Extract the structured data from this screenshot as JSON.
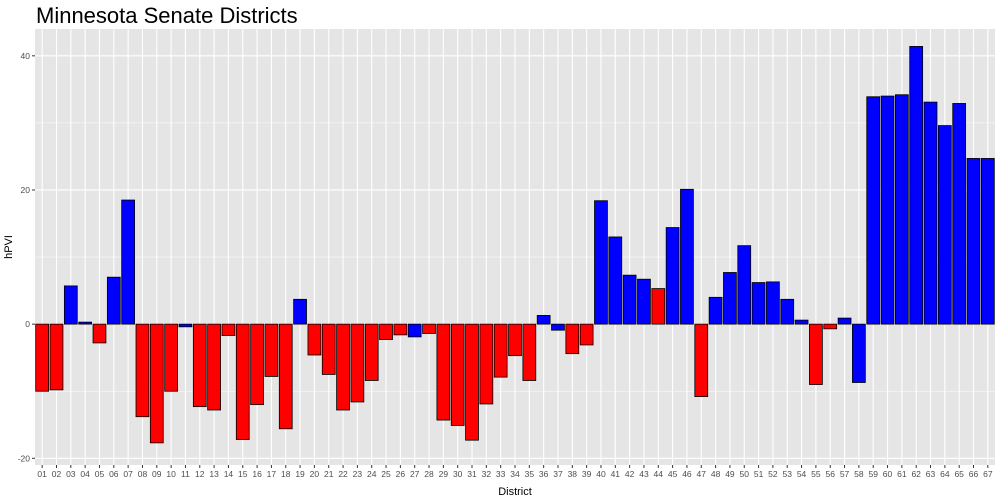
{
  "chart_data": {
    "type": "bar",
    "title": "Minnesota Senate Districts",
    "xlabel": "District",
    "ylabel": "hPVI",
    "ylim": [
      -21,
      44
    ],
    "yticks": [
      -20,
      0,
      20,
      40
    ],
    "grid": true,
    "categories": [
      "01",
      "02",
      "03",
      "04",
      "05",
      "06",
      "07",
      "08",
      "09",
      "10",
      "11",
      "12",
      "13",
      "14",
      "15",
      "16",
      "17",
      "18",
      "19",
      "20",
      "21",
      "22",
      "23",
      "24",
      "25",
      "26",
      "27",
      "28",
      "29",
      "30",
      "31",
      "32",
      "33",
      "34",
      "35",
      "36",
      "37",
      "38",
      "39",
      "40",
      "41",
      "42",
      "43",
      "44",
      "45",
      "46",
      "47",
      "48",
      "49",
      "50",
      "51",
      "52",
      "53",
      "54",
      "55",
      "56",
      "57",
      "58",
      "59",
      "60",
      "61",
      "62",
      "63",
      "64",
      "65",
      "66",
      "67"
    ],
    "values": [
      -10.0,
      -9.8,
      5.7,
      0.3,
      -2.8,
      7.0,
      18.5,
      -13.8,
      -17.7,
      -10.0,
      -0.4,
      -12.3,
      -12.8,
      -1.7,
      -17.2,
      -12.0,
      -7.8,
      -15.6,
      3.7,
      -4.6,
      -7.5,
      -12.8,
      -11.6,
      -8.4,
      -2.3,
      -1.6,
      -1.9,
      -1.4,
      -14.3,
      -15.1,
      -17.3,
      -11.9,
      -7.9,
      -4.7,
      -8.4,
      1.3,
      -0.9,
      -4.4,
      -3.1,
      18.4,
      13.0,
      7.3,
      6.7,
      5.3,
      14.4,
      20.1,
      -10.8,
      4.0,
      7.7,
      11.7,
      6.2,
      6.3,
      3.7,
      0.6,
      -9.0,
      -0.7,
      0.9,
      -8.7,
      33.9,
      34.0,
      34.2,
      41.4,
      33.1,
      29.6,
      32.9,
      24.7,
      24.7
    ],
    "colors": {
      "democrat": "#0000ff",
      "republican": "#ff0000",
      "outline": "#000000",
      "panel": "#e5e5e5",
      "grid": "#ffffff"
    },
    "bar_party": [
      "R",
      "R",
      "D",
      "D",
      "R",
      "D",
      "D",
      "R",
      "R",
      "R",
      "D",
      "R",
      "R",
      "R",
      "R",
      "R",
      "R",
      "R",
      "D",
      "R",
      "R",
      "R",
      "R",
      "R",
      "R",
      "R",
      "D",
      "R",
      "R",
      "R",
      "R",
      "R",
      "R",
      "R",
      "R",
      "D",
      "D",
      "R",
      "R",
      "D",
      "D",
      "D",
      "D",
      "R",
      "D",
      "D",
      "R",
      "D",
      "D",
      "D",
      "D",
      "D",
      "D",
      "D",
      "R",
      "R",
      "D",
      "D",
      "D",
      "D",
      "D",
      "D",
      "D",
      "D",
      "D",
      "D",
      "D"
    ]
  }
}
